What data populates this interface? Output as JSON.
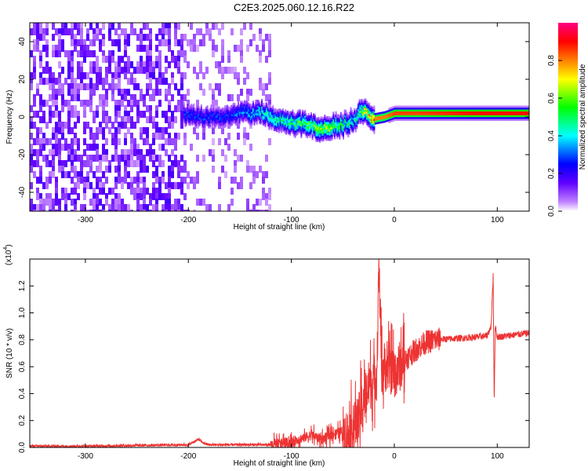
{
  "title": "C2E3.2025.060.12.16.R22",
  "chart_data": [
    {
      "type": "heatmap",
      "ylabel": "Frequency (Hz)",
      "xlabel": "Height of straight line (km)",
      "xlim": [
        -354,
        131
      ],
      "ylim": [
        -50,
        50
      ],
      "xticks": [
        "-300",
        "-200",
        "-100",
        "0",
        "100"
      ],
      "yticks": [
        "-40",
        "-20",
        "0",
        "20",
        "40"
      ],
      "colorbar": {
        "label": "Normalized spectral amplitude",
        "range": [
          0,
          1
        ],
        "ticks": [
          "0.0",
          "0.2",
          "0.4",
          "0.6",
          "0.8"
        ],
        "colors": [
          "#ffffff",
          "#c080ff",
          "#6000ff",
          "#0000ff",
          "#00ffff",
          "#00ff00",
          "#ffff00",
          "#ff8000",
          "#ff0000",
          "#ff0080"
        ]
      },
      "signal_track": {
        "x": [
          -205,
          -190,
          -175,
          -160,
          -150,
          -140,
          -130,
          -120,
          -110,
          -100,
          -90,
          -80,
          -70,
          -60,
          -50,
          -40,
          -35,
          -30,
          -25,
          -20,
          -10,
          0,
          20,
          50,
          80,
          90,
          100,
          120,
          131
        ],
        "y": [
          2,
          0,
          0,
          1,
          2,
          2,
          3,
          0,
          -2,
          -3,
          -4,
          -5,
          -6,
          -5,
          -4,
          -2,
          2,
          3,
          0,
          -1,
          0,
          2,
          2,
          2,
          2,
          2,
          2,
          2,
          2
        ],
        "amplitude": [
          0.3,
          0.3,
          0.3,
          0.3,
          0.35,
          0.4,
          0.45,
          0.5,
          0.5,
          0.55,
          0.6,
          0.65,
          0.7,
          0.6,
          0.55,
          0.45,
          0.55,
          0.7,
          0.8,
          0.85,
          0.85,
          0.9,
          0.9,
          0.92,
          0.95,
          0.95,
          0.95,
          0.95,
          0.95
        ]
      },
      "noise_region": {
        "x": [
          -354,
          -120
        ],
        "density_high_until": -205
      }
    },
    {
      "type": "line",
      "ylabel": "SNR (10 * v/v)",
      "y_multiplier": "(x10",
      "y_multiplier_exp": "4",
      "xlabel": "Height of straight line (km)",
      "xlim": [
        -354,
        131
      ],
      "ylim": [
        0,
        1.4
      ],
      "xticks": [
        "-300",
        "-200",
        "-100",
        "0",
        "100"
      ],
      "yticks": [
        "0.0",
        "0.2",
        "0.4",
        "0.6",
        "0.8",
        "1.0",
        "1.2"
      ],
      "color": "#ee3333",
      "series": [
        {
          "x": [
            -354,
            -300,
            -250,
            -200,
            -190,
            -185,
            -180,
            -150,
            -120,
            -110,
            -100,
            -90,
            -80,
            -70,
            -60,
            -50,
            -45,
            -40,
            -35,
            -30,
            -25,
            -20,
            -17,
            -15,
            -12,
            -10,
            -5,
            0,
            10,
            20,
            30,
            40,
            60,
            80,
            90,
            94,
            96,
            97,
            98,
            100,
            110,
            120,
            131
          ],
          "y": [
            0.01,
            0.01,
            0.015,
            0.02,
            0.06,
            0.03,
            0.02,
            0.02,
            0.02,
            0.03,
            0.04,
            0.07,
            0.09,
            0.06,
            0.1,
            0.12,
            0.09,
            0.15,
            0.2,
            0.35,
            0.45,
            0.5,
            0.55,
            1.36,
            0.55,
            0.6,
            0.6,
            0.55,
            0.65,
            0.72,
            0.78,
            0.8,
            0.81,
            0.82,
            0.83,
            0.9,
            1.28,
            0.33,
            0.9,
            0.82,
            0.83,
            0.84,
            0.85
          ]
        }
      ]
    }
  ]
}
